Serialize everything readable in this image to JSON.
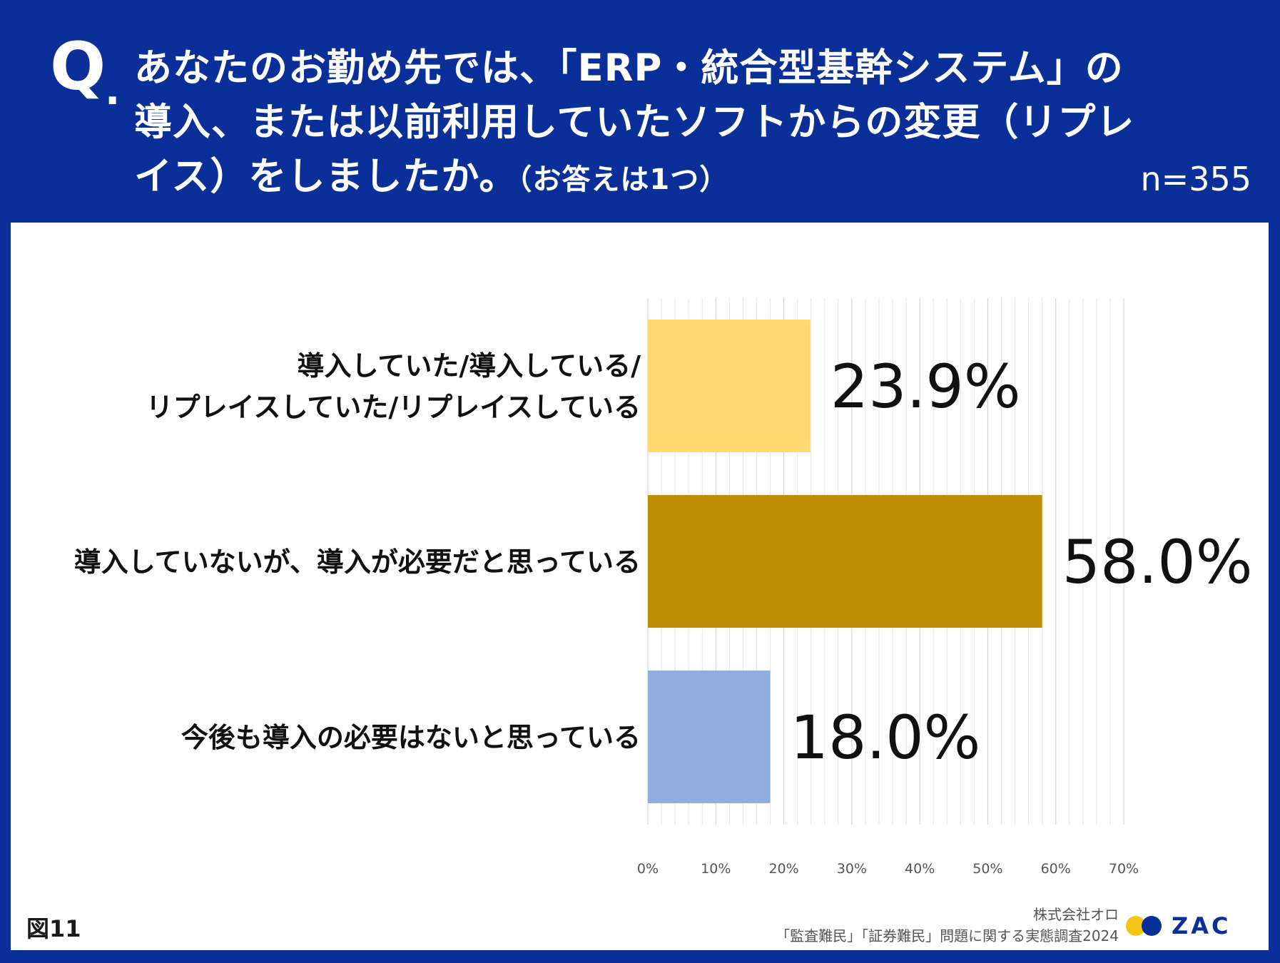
{
  "header": {
    "q_mark": "Q",
    "q_dot": ".",
    "question_lines": [
      "あなたのお勤め先では、「ERP・統合型基幹システム」の",
      "導入、または以前利用していたソフトからの変更（リプレ",
      "イス）をしましたか。"
    ],
    "question_note": "（お答えは1つ）",
    "sample_size": "n=355"
  },
  "footer": {
    "figure_label": "図11",
    "source_lines": [
      "株式会社オロ",
      "「監査難民」「証券難民」問題に関する実態調査2024"
    ],
    "logo_text": "ZAC"
  },
  "colors": {
    "header_bg": "#0a2f99",
    "bar_1": "#ffd96e",
    "bar_2": "#bd8f00",
    "bar_3": "#91ade0",
    "logo_yellow": "#f5c516"
  },
  "chart_data": {
    "type": "bar",
    "orientation": "horizontal",
    "categories": [
      [
        "導入していた/導入している/",
        "リプレイスしていた/リプレイスしている"
      ],
      [
        "導入していないが、導入が必要だと思っている"
      ],
      [
        "今後も導入の必要はないと思っている"
      ]
    ],
    "values": [
      23.9,
      58.0,
      18.0
    ],
    "value_labels": [
      "23.9%",
      "58.0%",
      "18.0%"
    ],
    "bar_colors": [
      "#ffd96e",
      "#bd8f00",
      "#91ade0"
    ],
    "xlim": [
      0,
      70
    ],
    "xticks": [
      0,
      10,
      20,
      30,
      40,
      50,
      60,
      70
    ],
    "xtick_labels": [
      "0%",
      "10%",
      "20%",
      "30%",
      "40%",
      "50%",
      "60%",
      "70%"
    ],
    "grid": true
  }
}
